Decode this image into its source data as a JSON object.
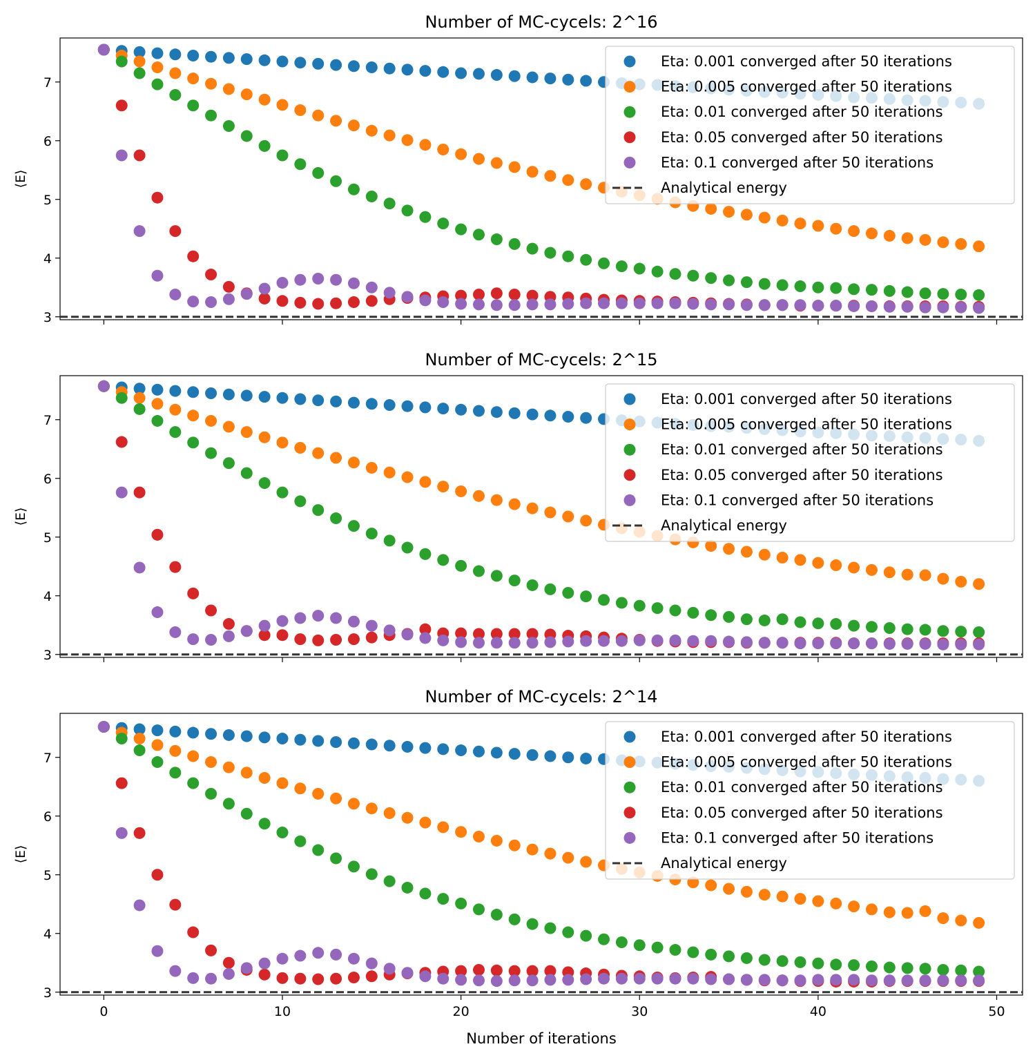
{
  "figure": {
    "xlabel": "Number of iterations",
    "ylabel": "⟨E⟩"
  },
  "colors": {
    "eta_0.001": "#1f77b4",
    "eta_0.005": "#ff7f0e",
    "eta_0.01": "#2ca02c",
    "eta_0.05": "#d62728",
    "eta_0.1": "#9467bd",
    "analytical": "#333333"
  },
  "chart_data": [
    {
      "type": "scatter",
      "title": "Number of MC-cycels: 2^16",
      "xlabel": "",
      "ylabel": "⟨E⟩",
      "xlim": [
        -2.45,
        51.45
      ],
      "ylim": [
        2.95,
        7.75
      ],
      "xticks": [
        0,
        10,
        20,
        30,
        40,
        50
      ],
      "xtick_labels_visible": false,
      "yticks": [
        3,
        4,
        5,
        6,
        7
      ],
      "legend_position": "upper right",
      "analytical_energy": 3.0,
      "analytical_label": "Analytical energy",
      "series": [
        {
          "name": "Eta: 0.001 converged after 50 iterations",
          "color": "#1f77b4",
          "values": [
            7.55,
            7.53,
            7.51,
            7.49,
            7.47,
            7.45,
            7.43,
            7.41,
            7.39,
            7.37,
            7.35,
            7.33,
            7.31,
            7.29,
            7.27,
            7.25,
            7.23,
            7.21,
            7.19,
            7.17,
            7.15,
            7.14,
            7.12,
            7.1,
            7.08,
            7.06,
            7.04,
            7.02,
            7.0,
            6.98,
            6.96,
            6.95,
            6.93,
            6.91,
            6.89,
            6.87,
            6.85,
            6.83,
            6.82,
            6.8,
            6.78,
            6.76,
            6.74,
            6.73,
            6.71,
            6.69,
            6.68,
            6.66,
            6.65,
            6.63
          ]
        },
        {
          "name": "Eta: 0.005 converged after 50 iterations",
          "color": "#ff7f0e",
          "values": [
            7.55,
            7.45,
            7.35,
            7.25,
            7.15,
            7.06,
            6.97,
            6.88,
            6.79,
            6.7,
            6.61,
            6.52,
            6.43,
            6.34,
            6.26,
            6.17,
            6.09,
            6.01,
            5.93,
            5.85,
            5.77,
            5.69,
            5.62,
            5.55,
            5.47,
            5.4,
            5.33,
            5.26,
            5.2,
            5.13,
            5.07,
            5.01,
            4.95,
            4.89,
            4.84,
            4.79,
            4.74,
            4.69,
            4.64,
            4.59,
            4.55,
            4.5,
            4.46,
            4.42,
            4.38,
            4.34,
            4.31,
            4.27,
            4.24,
            4.2
          ]
        },
        {
          "name": "Eta: 0.01 converged after 50 iterations",
          "color": "#2ca02c",
          "values": [
            7.55,
            7.35,
            7.15,
            6.96,
            6.78,
            6.6,
            6.43,
            6.25,
            6.08,
            5.91,
            5.75,
            5.6,
            5.45,
            5.31,
            5.17,
            5.05,
            4.93,
            4.81,
            4.7,
            4.59,
            4.49,
            4.4,
            4.32,
            4.24,
            4.16,
            4.09,
            4.03,
            3.97,
            3.91,
            3.86,
            3.82,
            3.77,
            3.73,
            3.7,
            3.66,
            3.62,
            3.59,
            3.56,
            3.54,
            3.52,
            3.5,
            3.49,
            3.47,
            3.46,
            3.44,
            3.42,
            3.4,
            3.39,
            3.38,
            3.37
          ]
        },
        {
          "name": "Eta: 0.05 converged after 50 iterations",
          "color": "#d62728",
          "values": [
            7.55,
            6.6,
            5.75,
            5.03,
            4.46,
            4.03,
            3.72,
            3.51,
            3.4,
            3.31,
            3.27,
            3.24,
            3.22,
            3.23,
            3.25,
            3.27,
            3.3,
            3.32,
            3.33,
            3.35,
            3.36,
            3.38,
            3.4,
            3.38,
            3.36,
            3.34,
            3.33,
            3.31,
            3.29,
            3.28,
            3.27,
            3.26,
            3.25,
            3.24,
            3.23,
            3.22,
            3.21,
            3.2,
            3.2,
            3.19,
            3.19,
            3.19,
            3.19,
            3.18,
            3.18,
            3.18,
            3.18,
            3.18,
            3.17,
            3.17
          ]
        },
        {
          "name": "Eta: 0.1 converged after 50 iterations",
          "color": "#9467bd",
          "values": [
            7.55,
            5.75,
            4.46,
            3.7,
            3.38,
            3.26,
            3.25,
            3.3,
            3.39,
            3.48,
            3.58,
            3.63,
            3.65,
            3.63,
            3.57,
            3.5,
            3.41,
            3.34,
            3.28,
            3.25,
            3.22,
            3.21,
            3.2,
            3.2,
            3.21,
            3.21,
            3.22,
            3.23,
            3.23,
            3.23,
            3.23,
            3.23,
            3.23,
            3.22,
            3.21,
            3.21,
            3.2,
            3.2,
            3.2,
            3.2,
            3.19,
            3.19,
            3.18,
            3.18,
            3.17,
            3.17,
            3.16,
            3.16,
            3.16,
            3.15
          ]
        }
      ]
    },
    {
      "type": "scatter",
      "title": "Number of MC-cycels: 2^15",
      "xlabel": "",
      "ylabel": "⟨E⟩",
      "xlim": [
        -2.45,
        51.45
      ],
      "ylim": [
        2.95,
        7.75
      ],
      "xticks": [
        0,
        10,
        20,
        30,
        40,
        50
      ],
      "xtick_labels_visible": false,
      "yticks": [
        3,
        4,
        5,
        6,
        7
      ],
      "legend_position": "upper right",
      "analytical_energy": 3.0,
      "analytical_label": "Analytical energy",
      "series": [
        {
          "name": "Eta: 0.001 converged after 50 iterations",
          "color": "#1f77b4",
          "values": [
            7.57,
            7.55,
            7.53,
            7.51,
            7.49,
            7.47,
            7.45,
            7.43,
            7.41,
            7.39,
            7.37,
            7.35,
            7.33,
            7.31,
            7.29,
            7.27,
            7.25,
            7.23,
            7.21,
            7.19,
            7.17,
            7.15,
            7.13,
            7.11,
            7.09,
            7.07,
            7.05,
            7.03,
            7.01,
            6.99,
            6.97,
            6.95,
            6.93,
            6.91,
            6.89,
            6.88,
            6.86,
            6.84,
            6.82,
            6.8,
            6.78,
            6.77,
            6.75,
            6.73,
            6.72,
            6.7,
            6.69,
            6.67,
            6.66,
            6.64
          ]
        },
        {
          "name": "Eta: 0.005 converged after 50 iterations",
          "color": "#ff7f0e",
          "values": [
            7.57,
            7.47,
            7.37,
            7.27,
            7.17,
            7.07,
            6.98,
            6.88,
            6.79,
            6.7,
            6.61,
            6.52,
            6.43,
            6.35,
            6.27,
            6.18,
            6.1,
            6.02,
            5.94,
            5.86,
            5.78,
            5.7,
            5.63,
            5.56,
            5.49,
            5.42,
            5.35,
            5.28,
            5.21,
            5.15,
            5.09,
            5.02,
            4.96,
            4.91,
            4.85,
            4.8,
            4.75,
            4.7,
            4.65,
            4.61,
            4.56,
            4.52,
            4.48,
            4.44,
            4.4,
            4.36,
            4.35,
            4.29,
            4.24,
            4.2
          ]
        },
        {
          "name": "Eta: 0.01 converged after 50 iterations",
          "color": "#2ca02c",
          "values": [
            7.57,
            7.37,
            7.18,
            6.98,
            6.79,
            6.61,
            6.43,
            6.26,
            6.09,
            5.92,
            5.76,
            5.61,
            5.46,
            5.32,
            5.19,
            5.06,
            4.94,
            4.82,
            4.71,
            4.61,
            4.51,
            4.42,
            4.34,
            4.26,
            4.18,
            4.11,
            4.05,
            3.99,
            3.93,
            3.88,
            3.83,
            3.79,
            3.75,
            3.71,
            3.67,
            3.64,
            3.6,
            3.58,
            3.6,
            3.55,
            3.53,
            3.52,
            3.49,
            3.47,
            3.45,
            3.43,
            3.42,
            3.4,
            3.39,
            3.38
          ]
        },
        {
          "name": "Eta: 0.05 converged after 50 iterations",
          "color": "#d62728",
          "values": [
            7.57,
            6.62,
            5.76,
            5.04,
            4.49,
            4.04,
            3.75,
            3.52,
            3.4,
            3.33,
            3.33,
            3.26,
            3.24,
            3.25,
            3.26,
            3.29,
            3.33,
            3.35,
            3.43,
            3.36,
            3.36,
            3.35,
            3.35,
            3.35,
            3.35,
            3.34,
            3.32,
            3.31,
            3.29,
            3.27,
            3.25,
            3.23,
            3.22,
            3.21,
            3.21,
            3.21,
            3.2,
            3.2,
            3.2,
            3.2,
            3.2,
            3.2,
            3.19,
            3.19,
            3.19,
            3.19,
            3.19,
            3.19,
            3.19,
            3.19
          ]
        },
        {
          "name": "Eta: 0.1 converged after 50 iterations",
          "color": "#9467bd",
          "values": [
            7.57,
            5.76,
            4.48,
            3.72,
            3.38,
            3.26,
            3.25,
            3.31,
            3.4,
            3.49,
            3.57,
            3.62,
            3.66,
            3.62,
            3.56,
            3.49,
            3.41,
            3.34,
            3.28,
            3.24,
            3.21,
            3.2,
            3.2,
            3.2,
            3.2,
            3.21,
            3.22,
            3.23,
            3.23,
            3.23,
            3.24,
            3.24,
            3.24,
            3.23,
            3.23,
            3.22,
            3.21,
            3.2,
            3.2,
            3.19,
            3.19,
            3.19,
            3.19,
            3.19,
            3.18,
            3.18,
            3.18,
            3.17,
            3.17,
            3.17
          ]
        }
      ]
    },
    {
      "type": "scatter",
      "title": "Number of MC-cycels: 2^14",
      "xlabel": "Number of iterations",
      "ylabel": "⟨E⟩",
      "xlim": [
        -2.45,
        51.45
      ],
      "ylim": [
        2.95,
        7.75
      ],
      "xticks": [
        0,
        10,
        20,
        30,
        40,
        50
      ],
      "xtick_labels_visible": true,
      "yticks": [
        3,
        4,
        5,
        6,
        7
      ],
      "legend_position": "upper right",
      "analytical_energy": 3.0,
      "analytical_label": "Analytical energy",
      "series": [
        {
          "name": "Eta: 0.001 converged after 50 iterations",
          "color": "#1f77b4",
          "values": [
            7.52,
            7.5,
            7.48,
            7.46,
            7.44,
            7.42,
            7.4,
            7.38,
            7.36,
            7.34,
            7.32,
            7.3,
            7.28,
            7.26,
            7.24,
            7.22,
            7.2,
            7.18,
            7.16,
            7.14,
            7.12,
            7.1,
            7.08,
            7.06,
            7.04,
            7.02,
            7.0,
            6.98,
            6.97,
            6.95,
            6.93,
            6.91,
            6.89,
            6.87,
            6.85,
            6.84,
            6.82,
            6.8,
            6.78,
            6.76,
            6.75,
            6.73,
            6.71,
            6.7,
            6.68,
            6.66,
            6.65,
            6.63,
            6.62,
            6.6
          ]
        },
        {
          "name": "Eta: 0.005 converged after 50 iterations",
          "color": "#ff7f0e",
          "values": [
            7.52,
            7.42,
            7.32,
            7.21,
            7.11,
            7.02,
            6.92,
            6.83,
            6.74,
            6.65,
            6.56,
            6.47,
            6.38,
            6.3,
            6.21,
            6.13,
            6.05,
            5.97,
            5.89,
            5.81,
            5.73,
            5.65,
            5.58,
            5.5,
            5.43,
            5.36,
            5.29,
            5.22,
            5.16,
            5.1,
            5.04,
            4.98,
            4.92,
            4.87,
            4.82,
            4.76,
            4.71,
            4.66,
            4.63,
            4.59,
            4.55,
            4.51,
            4.46,
            4.41,
            4.36,
            4.35,
            4.38,
            4.26,
            4.22,
            4.18
          ]
        },
        {
          "name": "Eta: 0.01 converged after 50 iterations",
          "color": "#2ca02c",
          "values": [
            7.52,
            7.32,
            7.12,
            6.92,
            6.74,
            6.56,
            6.38,
            6.21,
            6.04,
            5.87,
            5.72,
            5.57,
            5.42,
            5.28,
            5.14,
            5.01,
            4.89,
            4.78,
            4.68,
            4.59,
            4.51,
            4.41,
            4.32,
            4.24,
            4.16,
            4.09,
            4.02,
            3.96,
            3.9,
            3.85,
            3.8,
            3.76,
            3.72,
            3.68,
            3.64,
            3.61,
            3.58,
            3.55,
            3.53,
            3.51,
            3.49,
            3.47,
            3.46,
            3.44,
            3.42,
            3.41,
            3.4,
            3.38,
            3.37,
            3.35
          ]
        },
        {
          "name": "Eta: 0.05 converged after 50 iterations",
          "color": "#d62728",
          "values": [
            7.52,
            6.56,
            5.71,
            5.0,
            4.49,
            4.02,
            3.71,
            3.5,
            3.38,
            3.3,
            3.24,
            3.23,
            3.22,
            3.23,
            3.25,
            3.27,
            3.3,
            3.32,
            3.33,
            3.35,
            3.36,
            3.38,
            3.37,
            3.36,
            3.36,
            3.36,
            3.34,
            3.32,
            3.3,
            3.28,
            3.27,
            3.25,
            3.24,
            3.25,
            3.26,
            3.22,
            3.21,
            3.2,
            3.2,
            3.19,
            3.19,
            3.18,
            3.18,
            3.18,
            3.19,
            3.19,
            3.19,
            3.19,
            3.19,
            3.19
          ]
        },
        {
          "name": "Eta: 0.1 converged after 50 iterations",
          "color": "#9467bd",
          "values": [
            7.52,
            5.71,
            4.48,
            3.7,
            3.36,
            3.24,
            3.23,
            3.31,
            3.41,
            3.49,
            3.57,
            3.62,
            3.67,
            3.64,
            3.57,
            3.49,
            3.4,
            3.33,
            3.27,
            3.23,
            3.21,
            3.2,
            3.19,
            3.2,
            3.2,
            3.21,
            3.21,
            3.22,
            3.23,
            3.23,
            3.23,
            3.23,
            3.23,
            3.23,
            3.22,
            3.22,
            3.21,
            3.21,
            3.2,
            3.2,
            3.21,
            3.21,
            3.21,
            3.2,
            3.2,
            3.2,
            3.2,
            3.2,
            3.2,
            3.2
          ]
        }
      ]
    }
  ]
}
